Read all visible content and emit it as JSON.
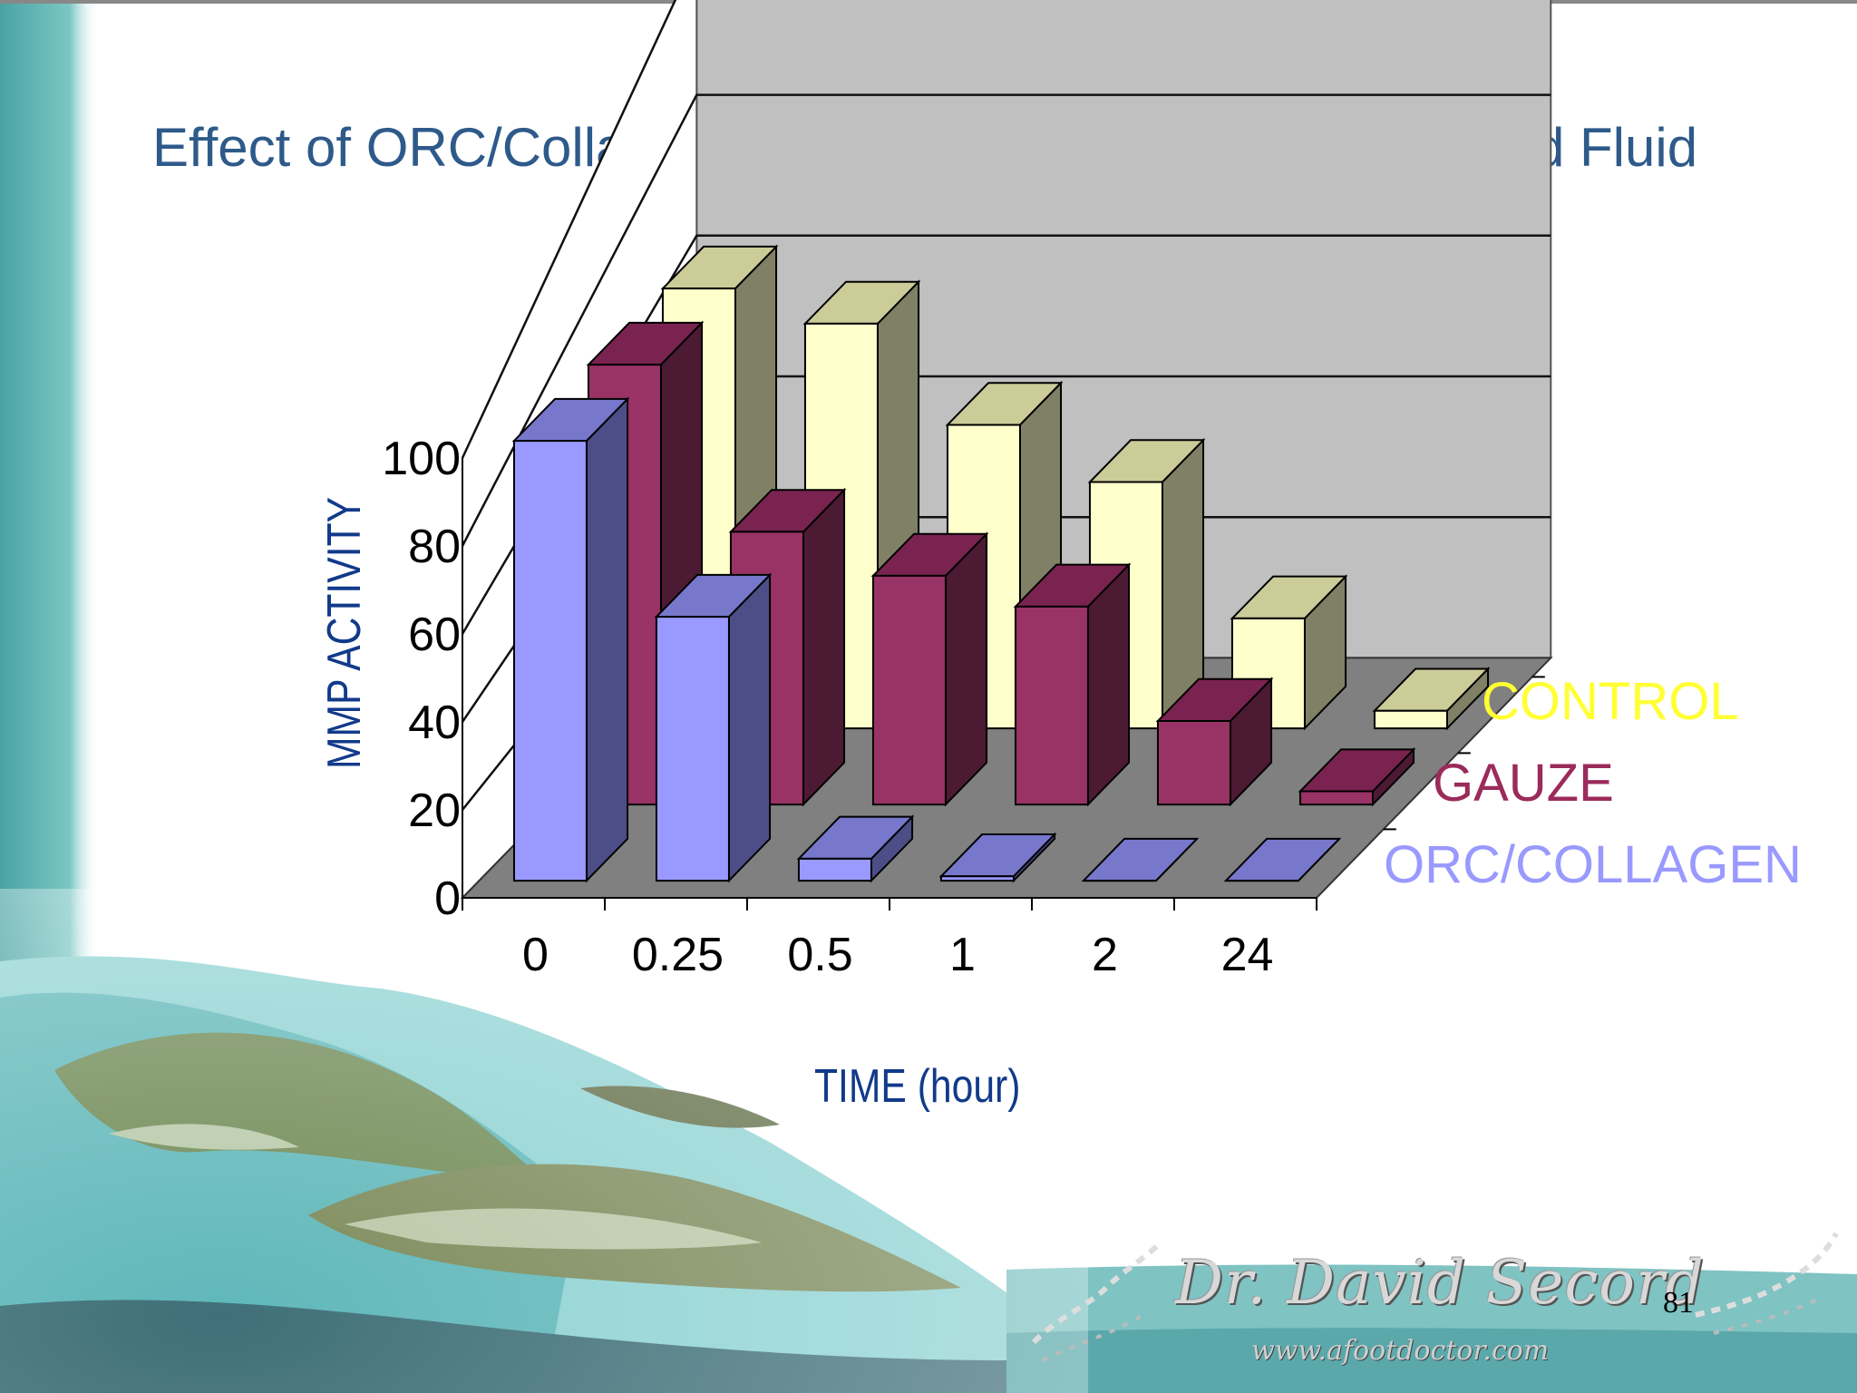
{
  "slide": {
    "title": "Effect of ORC/Collagen on MMP Activity in Chronic Wound Fluid",
    "logo_text": "Dr. David Secord",
    "logo_url": "www.afootdoctor.com",
    "page_number": "81"
  },
  "colors": {
    "title": "#2e5a8a",
    "axis_label": "#113a8a",
    "control_front": "#ffffcc",
    "gauze_front": "#993366",
    "orc_front": "#9999ff",
    "wall": "#c0c0c0",
    "floor": "#808080"
  },
  "chart_data": {
    "type": "bar",
    "projection": "3d-clustered-depth",
    "title": "Effect of ORC/Collagen on MMP Activity in Chronic Wound Fluid",
    "xlabel": "TIME (hour)",
    "ylabel": "MMP ACTIVITY",
    "categories": [
      "0",
      "0.25",
      "0.5",
      "1",
      "2",
      "24"
    ],
    "ylim": [
      0,
      100
    ],
    "yticks": [
      "0",
      "20",
      "40",
      "60",
      "80",
      "100"
    ],
    "grid": true,
    "legend_position": "right",
    "series": [
      {
        "name": "ORC/COLLAGEN",
        "values": [
          100,
          60,
          5,
          1,
          0,
          0
        ]
      },
      {
        "name": "GAUZE",
        "values": [
          100,
          62,
          52,
          45,
          19,
          3
        ]
      },
      {
        "name": "CONTROL",
        "values": [
          100,
          92,
          69,
          56,
          25,
          4
        ]
      }
    ]
  }
}
